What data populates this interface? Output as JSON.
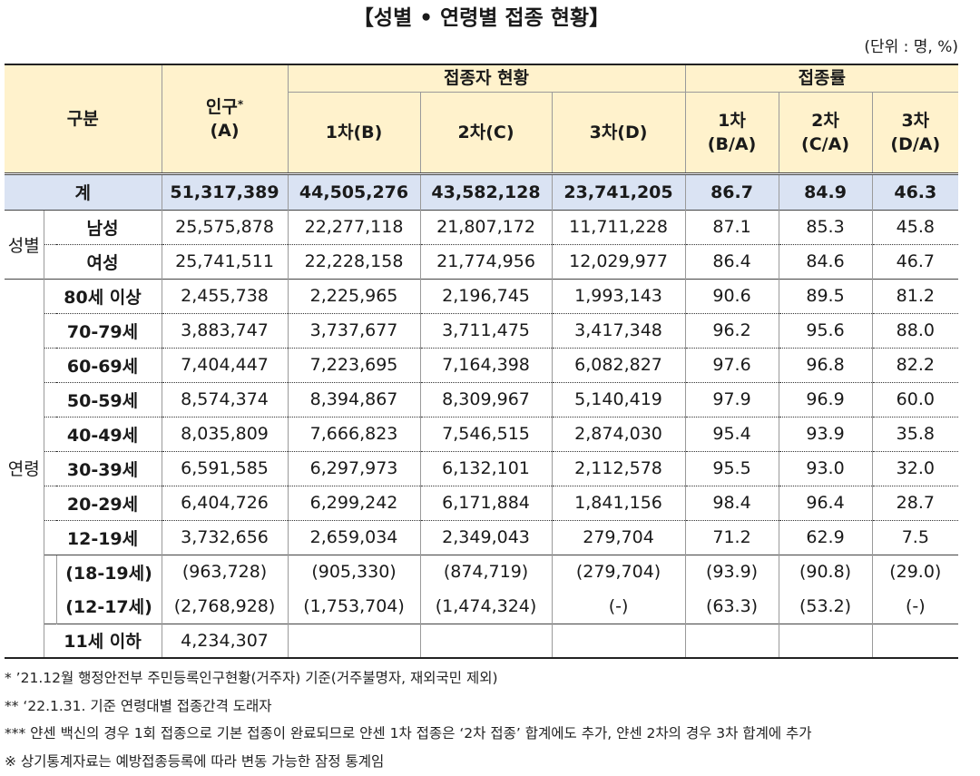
{
  "title": "【성별 • 연령별 접종 현황】",
  "unit": "(단위 : 명, %)",
  "header": {
    "category": "구분",
    "population": "인구",
    "population_mark": "*",
    "population_sub": "(A)",
    "vaccinated_group": "접종자 현황",
    "rate_group": "접종률",
    "dose1": "1차(B)",
    "dose2": "2차(C)",
    "dose3": "3차(D)",
    "rate1": [
      "1차",
      "(B/A)"
    ],
    "rate2": [
      "2차",
      "(C/A)"
    ],
    "rate3": [
      "3차",
      "(D/A)"
    ]
  },
  "total": {
    "label": "계",
    "values": [
      "51,317,389",
      "44,505,276",
      "43,582,128",
      "23,741,205",
      "86.7",
      "84.9",
      "46.3"
    ]
  },
  "sex": {
    "label": "성별",
    "rows": [
      {
        "label": "남성",
        "values": [
          "25,575,878",
          "22,277,118",
          "21,807,172",
          "11,711,228",
          "87.1",
          "85.3",
          "45.8"
        ]
      },
      {
        "label": "여성",
        "values": [
          "25,741,511",
          "22,228,158",
          "21,774,956",
          "12,029,977",
          "86.4",
          "84.6",
          "46.7"
        ]
      }
    ]
  },
  "age": {
    "label": "연령",
    "rows": [
      {
        "label": "80세 이상",
        "values": [
          "2,455,738",
          "2,225,965",
          "2,196,745",
          "1,993,143",
          "90.6",
          "89.5",
          "81.2"
        ]
      },
      {
        "label": "70-79세",
        "values": [
          "3,883,747",
          "3,737,677",
          "3,711,475",
          "3,417,348",
          "96.2",
          "95.6",
          "88.0"
        ]
      },
      {
        "label": "60-69세",
        "values": [
          "7,404,447",
          "7,223,695",
          "7,164,398",
          "6,082,827",
          "97.6",
          "96.8",
          "82.2"
        ]
      },
      {
        "label": "50-59세",
        "values": [
          "8,574,374",
          "8,394,867",
          "8,309,967",
          "5,140,419",
          "97.9",
          "96.9",
          "60.0"
        ]
      },
      {
        "label": "40-49세",
        "values": [
          "8,035,809",
          "7,666,823",
          "7,546,515",
          "2,874,030",
          "95.4",
          "93.9",
          "35.8"
        ]
      },
      {
        "label": "30-39세",
        "values": [
          "6,591,585",
          "6,297,973",
          "6,132,101",
          "2,112,578",
          "95.5",
          "93.0",
          "32.0"
        ]
      },
      {
        "label": "20-29세",
        "values": [
          "6,404,726",
          "6,299,242",
          "6,171,884",
          "1,841,156",
          "98.4",
          "96.4",
          "28.7"
        ]
      },
      {
        "label": "12-19세",
        "values": [
          "3,732,656",
          "2,659,034",
          "2,349,043",
          "279,704",
          "71.2",
          "62.9",
          "7.5"
        ]
      }
    ],
    "sub_rows": [
      {
        "label": "(18-19세)",
        "values": [
          "(963,728)",
          "(905,330)",
          "(874,719)",
          "(279,704)",
          "(93.9)",
          "(90.8)",
          "(29.0)"
        ]
      },
      {
        "label": "(12-17세)",
        "values": [
          "(2,768,928)",
          "(1,753,704)",
          "(1,474,324)",
          "(-)",
          "(63.3)",
          "(53.2)",
          "(-)"
        ]
      }
    ],
    "under_11": {
      "label": "11세 이하",
      "population": "4,234,307"
    }
  },
  "footnotes": [
    "* ’21.12월 행정안전부 주민등록인구현황(거주자) 기준(거주불명자, 재외국민 제외)",
    "** ‘22.1.31. 기준 연령대별 접종간격 도래자",
    "*** 얀센 백신의 경우 1회 접종으로 기본 접종이 완료되므로 얀센 1차 접종은 ‘2차 접종’ 합계에도 추가, 얀센 2차의 경우 3차 합계에 추가",
    "※ 상기통계자료는 예방접종등록에 따라 변동 가능한 잠정 통계임"
  ]
}
